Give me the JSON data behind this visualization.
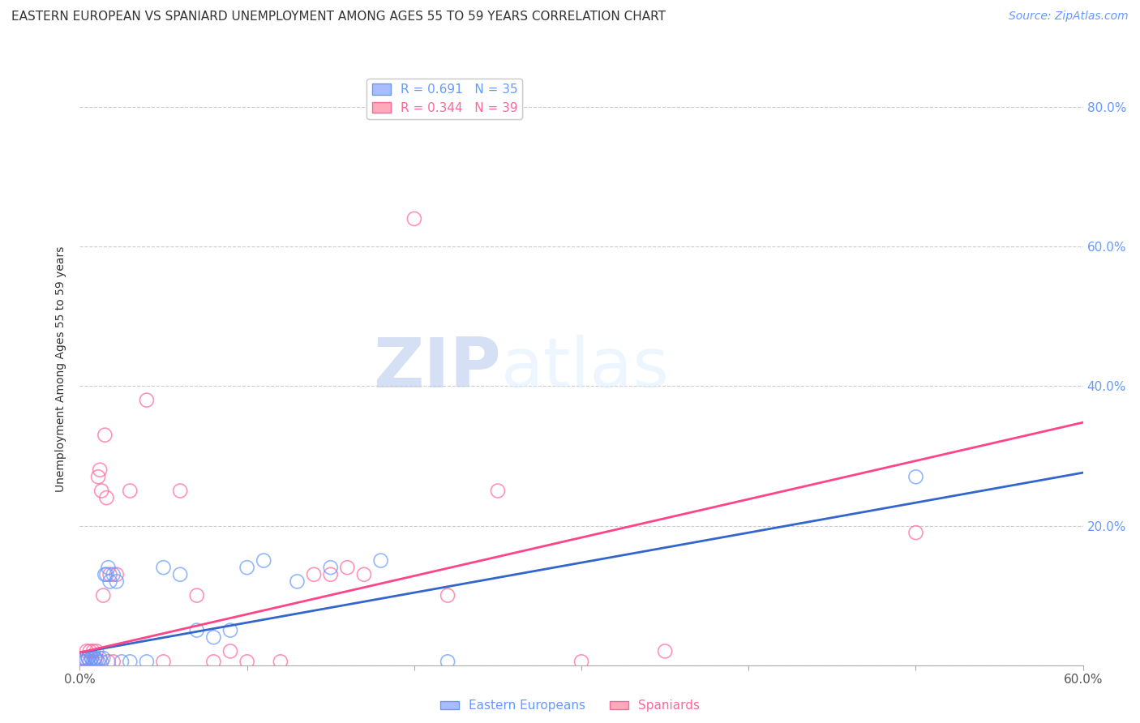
{
  "title": "EASTERN EUROPEAN VS SPANIARD UNEMPLOYMENT AMONG AGES 55 TO 59 YEARS CORRELATION CHART",
  "source": "Source: ZipAtlas.com",
  "ylabel": "Unemployment Among Ages 55 to 59 years",
  "watermark_zip": "ZIP",
  "watermark_atlas": "atlas",
  "xlim": [
    0.0,
    0.6
  ],
  "ylim": [
    0.0,
    0.85
  ],
  "xticks": [
    0.0,
    0.1,
    0.2,
    0.3,
    0.4,
    0.5,
    0.6
  ],
  "xtick_labels": [
    "0.0%",
    "",
    "",
    "",
    "",
    "",
    "60.0%"
  ],
  "yticks": [
    0.0,
    0.2,
    0.4,
    0.6,
    0.8
  ],
  "ytick_labels": [
    "",
    "20.0%",
    "40.0%",
    "60.0%",
    "80.0%"
  ],
  "blue_R": 0.691,
  "blue_N": 35,
  "pink_R": 0.344,
  "pink_N": 39,
  "blue_color": "#6699FF",
  "pink_color": "#FF6699",
  "blue_line_color": "#3366CC",
  "pink_line_color": "#FF4488",
  "legend_labels": [
    "Eastern Europeans",
    "Spaniards"
  ],
  "blue_x": [
    0.001,
    0.002,
    0.003,
    0.004,
    0.005,
    0.006,
    0.007,
    0.008,
    0.009,
    0.01,
    0.011,
    0.012,
    0.013,
    0.014,
    0.015,
    0.016,
    0.017,
    0.018,
    0.02,
    0.022,
    0.025,
    0.03,
    0.04,
    0.05,
    0.06,
    0.07,
    0.08,
    0.09,
    0.1,
    0.11,
    0.13,
    0.15,
    0.18,
    0.22,
    0.5
  ],
  "blue_y": [
    0.005,
    0.01,
    0.005,
    0.008,
    0.01,
    0.005,
    0.01,
    0.005,
    0.01,
    0.008,
    0.005,
    0.01,
    0.005,
    0.01,
    0.13,
    0.13,
    0.14,
    0.12,
    0.13,
    0.12,
    0.005,
    0.005,
    0.005,
    0.14,
    0.13,
    0.05,
    0.04,
    0.05,
    0.14,
    0.15,
    0.12,
    0.14,
    0.15,
    0.005,
    0.27
  ],
  "pink_x": [
    0.001,
    0.002,
    0.003,
    0.004,
    0.005,
    0.006,
    0.007,
    0.008,
    0.009,
    0.01,
    0.011,
    0.012,
    0.013,
    0.014,
    0.015,
    0.016,
    0.017,
    0.018,
    0.02,
    0.022,
    0.03,
    0.04,
    0.05,
    0.06,
    0.07,
    0.08,
    0.09,
    0.1,
    0.12,
    0.14,
    0.15,
    0.16,
    0.17,
    0.2,
    0.22,
    0.25,
    0.3,
    0.35,
    0.5
  ],
  "pink_y": [
    0.01,
    0.005,
    0.01,
    0.02,
    0.01,
    0.02,
    0.01,
    0.02,
    0.01,
    0.02,
    0.27,
    0.28,
    0.25,
    0.1,
    0.33,
    0.24,
    0.005,
    0.13,
    0.005,
    0.13,
    0.25,
    0.38,
    0.005,
    0.25,
    0.1,
    0.005,
    0.02,
    0.005,
    0.005,
    0.13,
    0.13,
    0.14,
    0.13,
    0.64,
    0.1,
    0.25,
    0.005,
    0.02,
    0.19
  ],
  "blue_line_intercept": 0.018,
  "blue_line_slope": 0.43,
  "pink_line_intercept": 0.018,
  "pink_line_slope": 0.55,
  "grid_color": "#cccccc",
  "background_color": "#ffffff",
  "title_fontsize": 11,
  "axis_label_fontsize": 10,
  "tick_fontsize": 11,
  "legend_fontsize": 11,
  "source_fontsize": 10
}
